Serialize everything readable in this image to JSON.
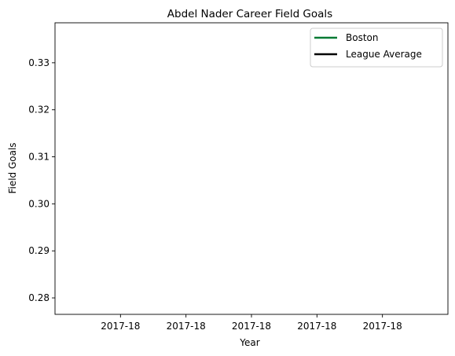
{
  "chart_data": {
    "type": "line",
    "title": "Abdel Nader Career Field Goals",
    "xlabel": "Year",
    "ylabel": "Field Goals",
    "x_tick_labels": [
      "2017-18",
      "2017-18",
      "2017-18",
      "2017-18",
      "2017-18"
    ],
    "y_ticks": [
      0.28,
      0.29,
      0.3,
      0.31,
      0.32,
      0.33
    ],
    "y_tick_labels": [
      "0.28",
      "0.29",
      "0.30",
      "0.31",
      "0.32",
      "0.33"
    ],
    "ylim": [
      0.2765,
      0.3385
    ],
    "grid": false,
    "legend_position": "top-right",
    "series": [
      {
        "name": "Boston",
        "color": "#007a33",
        "x": [],
        "values": []
      },
      {
        "name": "League Average",
        "color": "#000000",
        "x": [],
        "values": []
      }
    ]
  }
}
